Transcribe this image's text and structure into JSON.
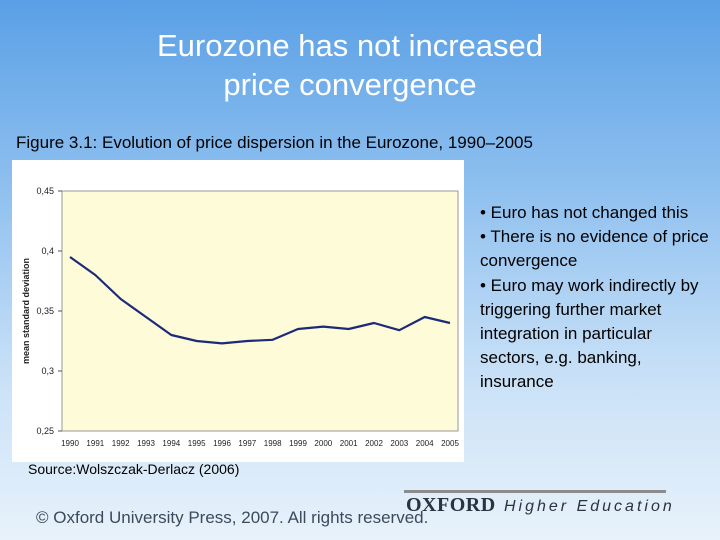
{
  "slide": {
    "title_line1": "Eurozone has not increased",
    "title_line2": "price convergence",
    "figure_caption": "Figure 3.1: Evolution of price dispersion in the Eurozone, 1990–2005",
    "source": "Source:Wolszczak-Derlacz (2006)",
    "bullets": [
      "• Euro has not changed this",
      "• There is no evidence of price convergence",
      "• Euro may work indirectly by triggering further market integration in particular sectors, e.g. banking, insurance"
    ],
    "footer": {
      "copyright": "© Oxford University Press, 2007. All rights reserved.",
      "logo": "OXFORD",
      "tagline": "Higher Education"
    }
  },
  "colors": {
    "plot_bg": "#fdfbd8",
    "line": "#1c2a7a",
    "title": "#ffffff"
  },
  "chart_data": {
    "type": "line",
    "title": "",
    "xlabel": "",
    "ylabel": "mean standard deviation",
    "x": [
      "1990",
      "1991",
      "1992",
      "1993",
      "1994",
      "1995",
      "1996",
      "1997",
      "1998",
      "1999",
      "2000",
      "2001",
      "2002",
      "2003",
      "2004",
      "2005"
    ],
    "series": [
      {
        "values": [
          0.395,
          0.38,
          0.36,
          0.345,
          0.33,
          0.325,
          0.323,
          0.325,
          0.326,
          0.335,
          0.337,
          0.335,
          0.34,
          0.334,
          0.345,
          0.34
        ]
      }
    ],
    "yticks": [
      "0,25",
      "0,3",
      "0,35",
      "0,4",
      "0,45"
    ],
    "ylim": [
      0.25,
      0.45
    ],
    "grid": false,
    "legend": "none"
  }
}
